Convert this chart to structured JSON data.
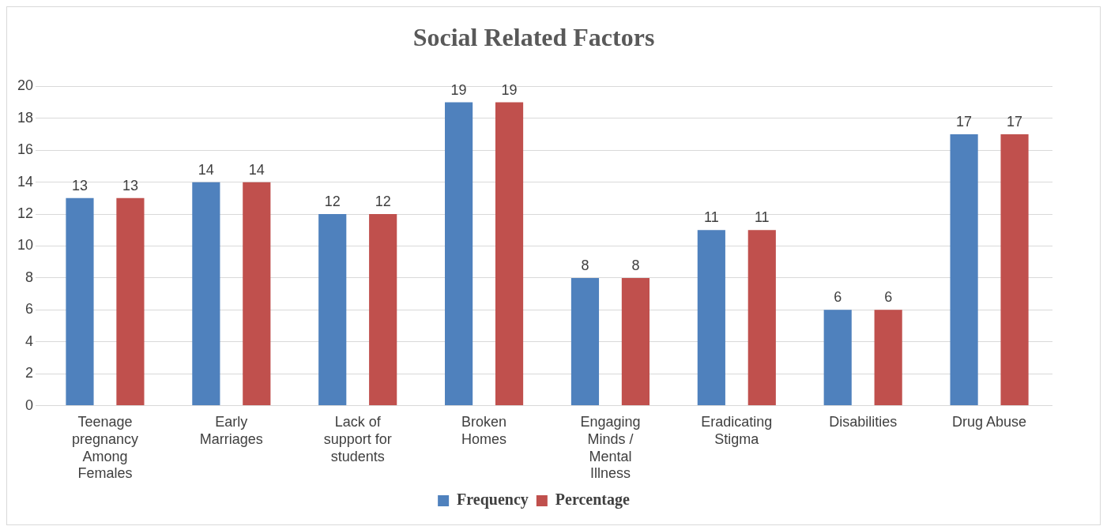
{
  "chart_data": {
    "type": "bar",
    "title": "Social Related Factors",
    "categories": [
      "Teenage pregnancy Among Females",
      "Early Marriages",
      "Lack of support for students",
      "Broken Homes",
      "Engaging Minds / Mental Illness",
      "Eradicating Stigma",
      "Disabilities",
      "Drug Abuse"
    ],
    "series": [
      {
        "name": "Frequency",
        "color": "#4f81bd",
        "values": [
          13,
          14,
          12,
          19,
          8,
          11,
          6,
          17
        ]
      },
      {
        "name": "Percentage",
        "color": "#c0504d",
        "values": [
          13,
          14,
          12,
          19,
          8,
          11,
          6,
          17
        ]
      }
    ],
    "ylim": [
      0,
      20
    ],
    "yticks": [
      0,
      2,
      4,
      6,
      8,
      10,
      12,
      14,
      16,
      18,
      20
    ],
    "grid": "y",
    "legend": "bottom",
    "data_labels": true
  }
}
